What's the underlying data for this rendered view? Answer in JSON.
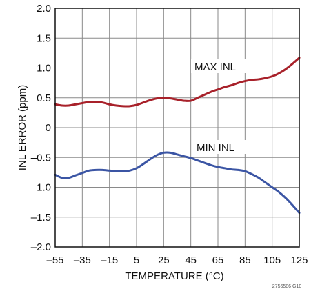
{
  "chart_data": {
    "type": "line",
    "title": "",
    "xlabel": "TEMPERATURE (°C)",
    "ylabel": "INL ERROR (ppm)",
    "xlim": [
      -55,
      125
    ],
    "ylim": [
      -2.0,
      2.0
    ],
    "x_ticks": [
      "–55",
      "–35",
      "–15",
      "5",
      "25",
      "45",
      "65",
      "85",
      "105",
      "125"
    ],
    "y_ticks": [
      "2.0",
      "1.5",
      "1.0",
      "0.5",
      "0",
      "–0.5",
      "–1.0",
      "–1.5",
      "–2.0"
    ],
    "grid": true,
    "series": [
      {
        "name": "MAX INL",
        "color": "#a8212a",
        "x": [
          -55,
          -50,
          -45,
          -40,
          -35,
          -30,
          -25,
          -20,
          -15,
          -10,
          -5,
          0,
          5,
          10,
          15,
          20,
          25,
          30,
          35,
          40,
          45,
          50,
          55,
          60,
          65,
          70,
          75,
          80,
          85,
          90,
          95,
          100,
          105,
          110,
          115,
          120,
          125
        ],
        "values": [
          0.39,
          0.37,
          0.37,
          0.39,
          0.41,
          0.43,
          0.43,
          0.42,
          0.39,
          0.37,
          0.36,
          0.36,
          0.38,
          0.42,
          0.46,
          0.49,
          0.5,
          0.49,
          0.47,
          0.45,
          0.45,
          0.5,
          0.55,
          0.6,
          0.64,
          0.68,
          0.71,
          0.75,
          0.78,
          0.8,
          0.81,
          0.83,
          0.86,
          0.91,
          0.98,
          1.07,
          1.17
        ]
      },
      {
        "name": "MIN INL",
        "color": "#3b55a4",
        "x": [
          -55,
          -50,
          -45,
          -40,
          -35,
          -30,
          -25,
          -20,
          -15,
          -10,
          -5,
          0,
          5,
          10,
          15,
          20,
          25,
          30,
          35,
          40,
          45,
          50,
          55,
          60,
          65,
          70,
          75,
          80,
          85,
          90,
          95,
          100,
          105,
          110,
          115,
          120,
          125
        ],
        "values": [
          -0.79,
          -0.84,
          -0.84,
          -0.8,
          -0.76,
          -0.72,
          -0.71,
          -0.71,
          -0.72,
          -0.73,
          -0.73,
          -0.72,
          -0.68,
          -0.61,
          -0.53,
          -0.46,
          -0.42,
          -0.42,
          -0.45,
          -0.48,
          -0.51,
          -0.55,
          -0.59,
          -0.63,
          -0.66,
          -0.68,
          -0.7,
          -0.71,
          -0.73,
          -0.78,
          -0.84,
          -0.92,
          -1.0,
          -1.08,
          -1.18,
          -1.3,
          -1.43
        ]
      }
    ],
    "annotations": [
      "MAX INL",
      "MIN INL"
    ],
    "figure_code": "2756586 G10"
  }
}
